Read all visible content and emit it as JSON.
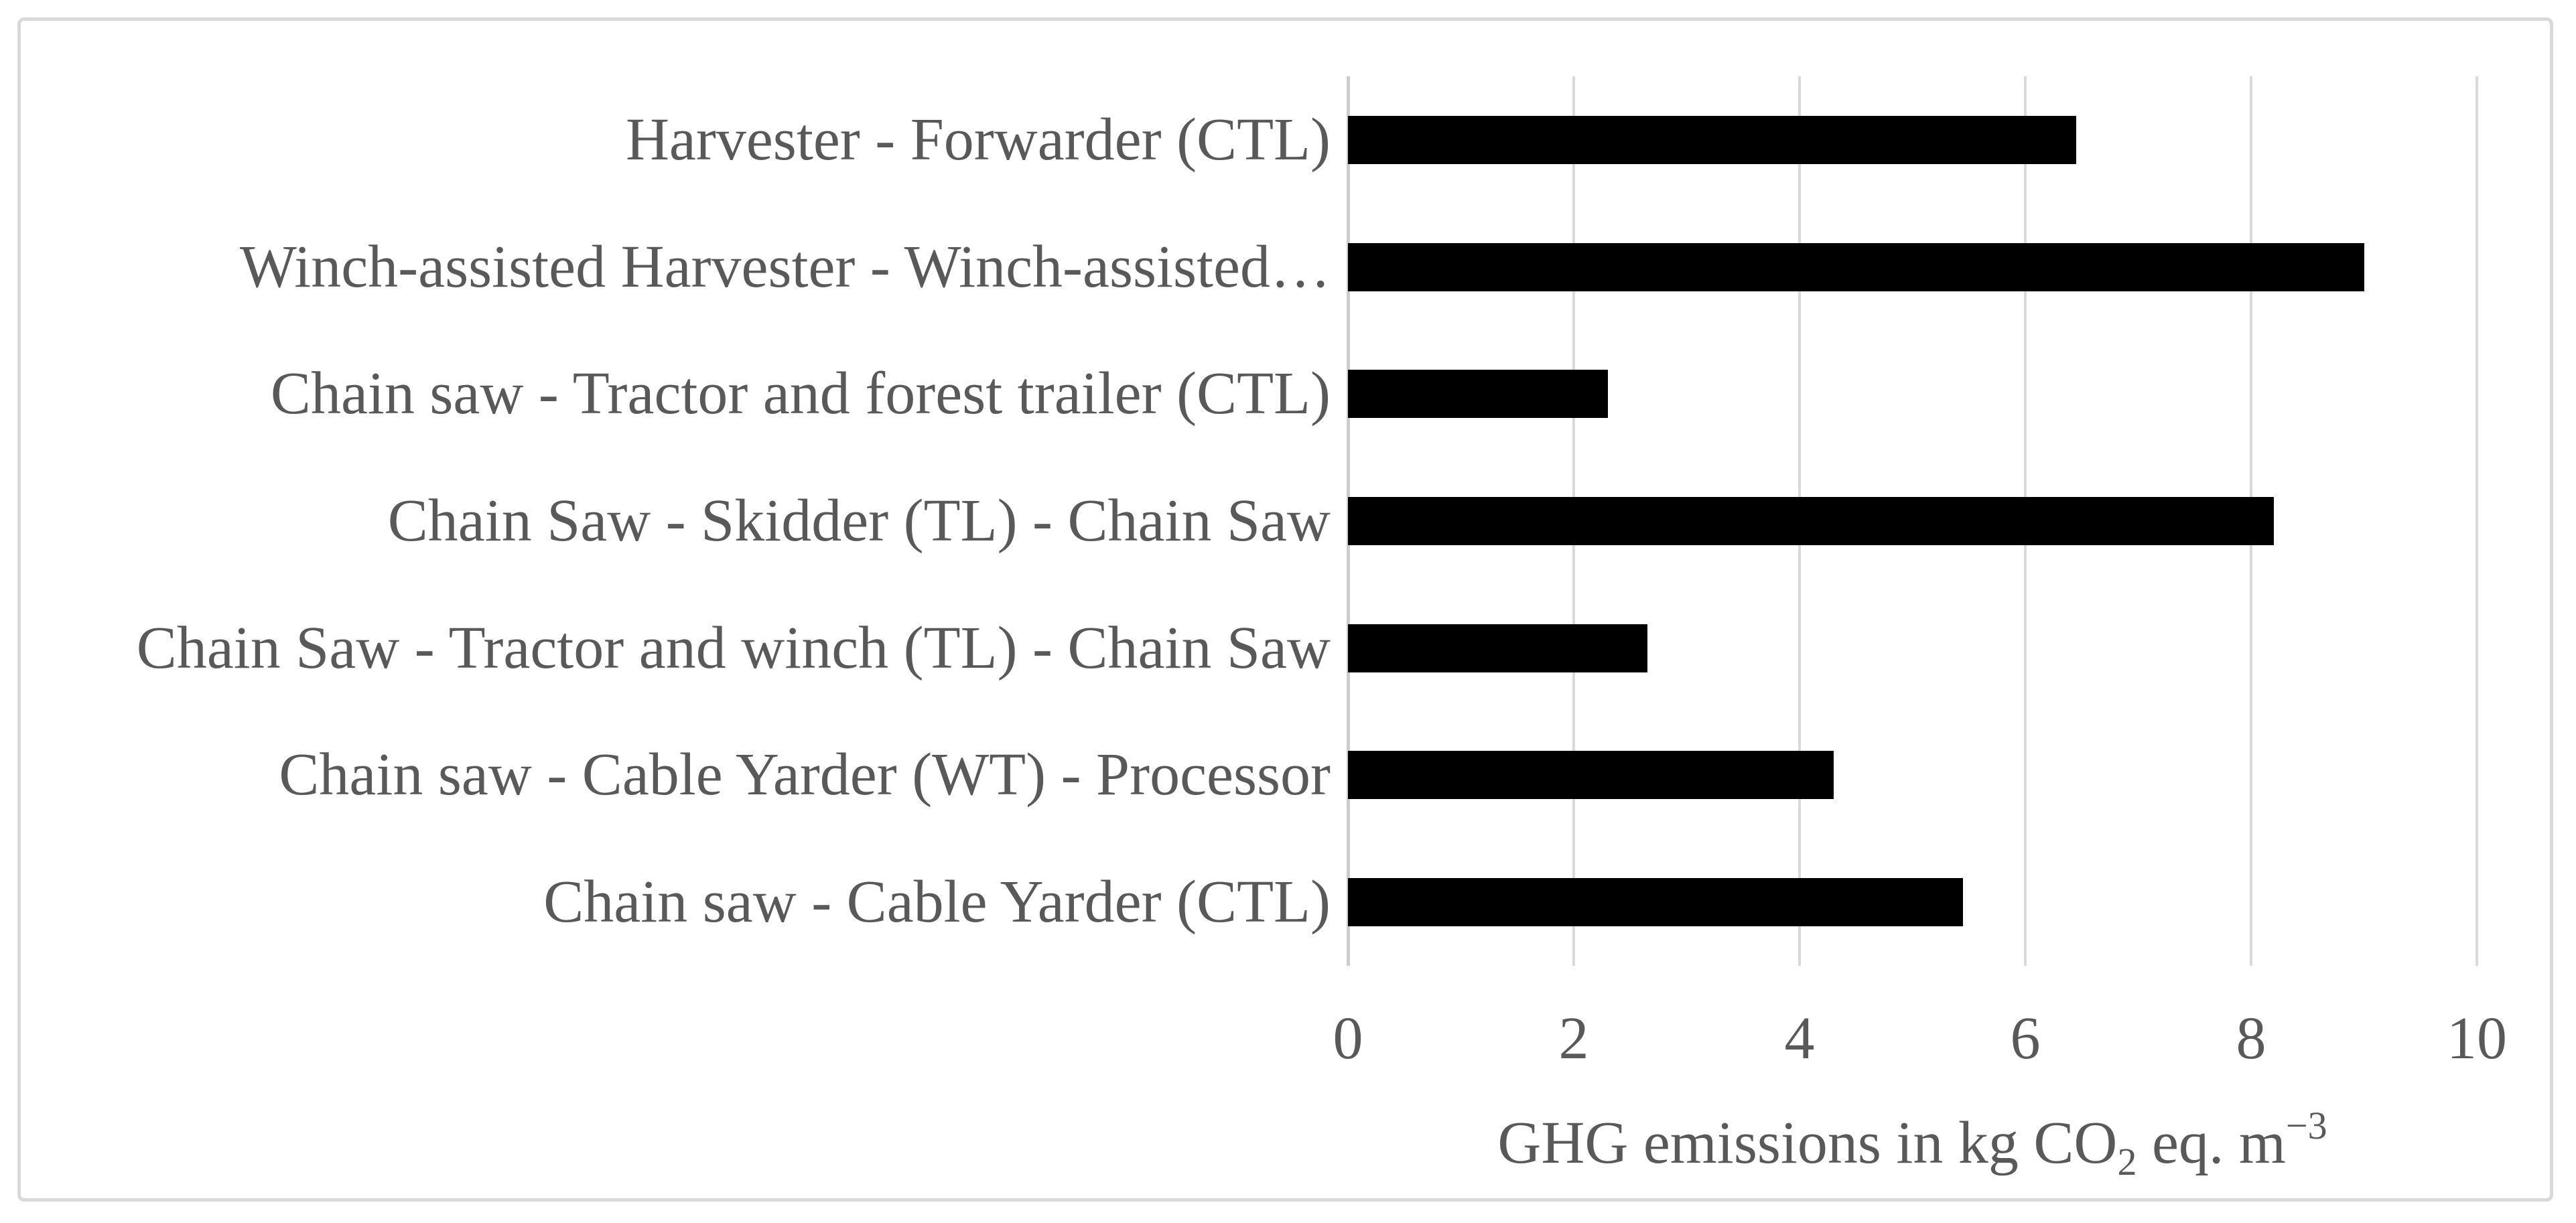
{
  "chart_data": {
    "type": "bar",
    "orientation": "horizontal",
    "title": "",
    "categories": [
      "Harvester - Forwarder (CTL)",
      "Winch-assisted Harvester - Winch-assisted…",
      "Chain saw - Tractor and forest trailer (CTL)",
      "Chain Saw - Skidder (TL) - Chain Saw",
      "Chain Saw - Tractor and winch (TL) - Chain Saw",
      "Chain saw - Cable Yarder (WT) - Processor",
      "Chain saw - Cable Yarder (CTL)"
    ],
    "values": [
      6.45,
      9.0,
      2.3,
      8.2,
      2.65,
      4.3,
      5.45
    ],
    "xlabel": "GHG emissions in kg CO2 eq. m−3",
    "xlabel_parts": {
      "pre": "GHG emissions in kg CO",
      "sub": "2",
      "mid": " eq. m",
      "sup": "−3"
    },
    "ylabel": "",
    "xlim": [
      0,
      10
    ],
    "xticks": [
      0,
      2,
      4,
      6,
      8,
      10
    ],
    "grid": "vertical-major",
    "legend": "none",
    "colors": {
      "bar": "#000000",
      "gridline": "#d9d9d9",
      "axis_line": "#cdcdcd",
      "text": "#595959",
      "figure_border": "#d9d9d9",
      "background": "#ffffff"
    }
  }
}
